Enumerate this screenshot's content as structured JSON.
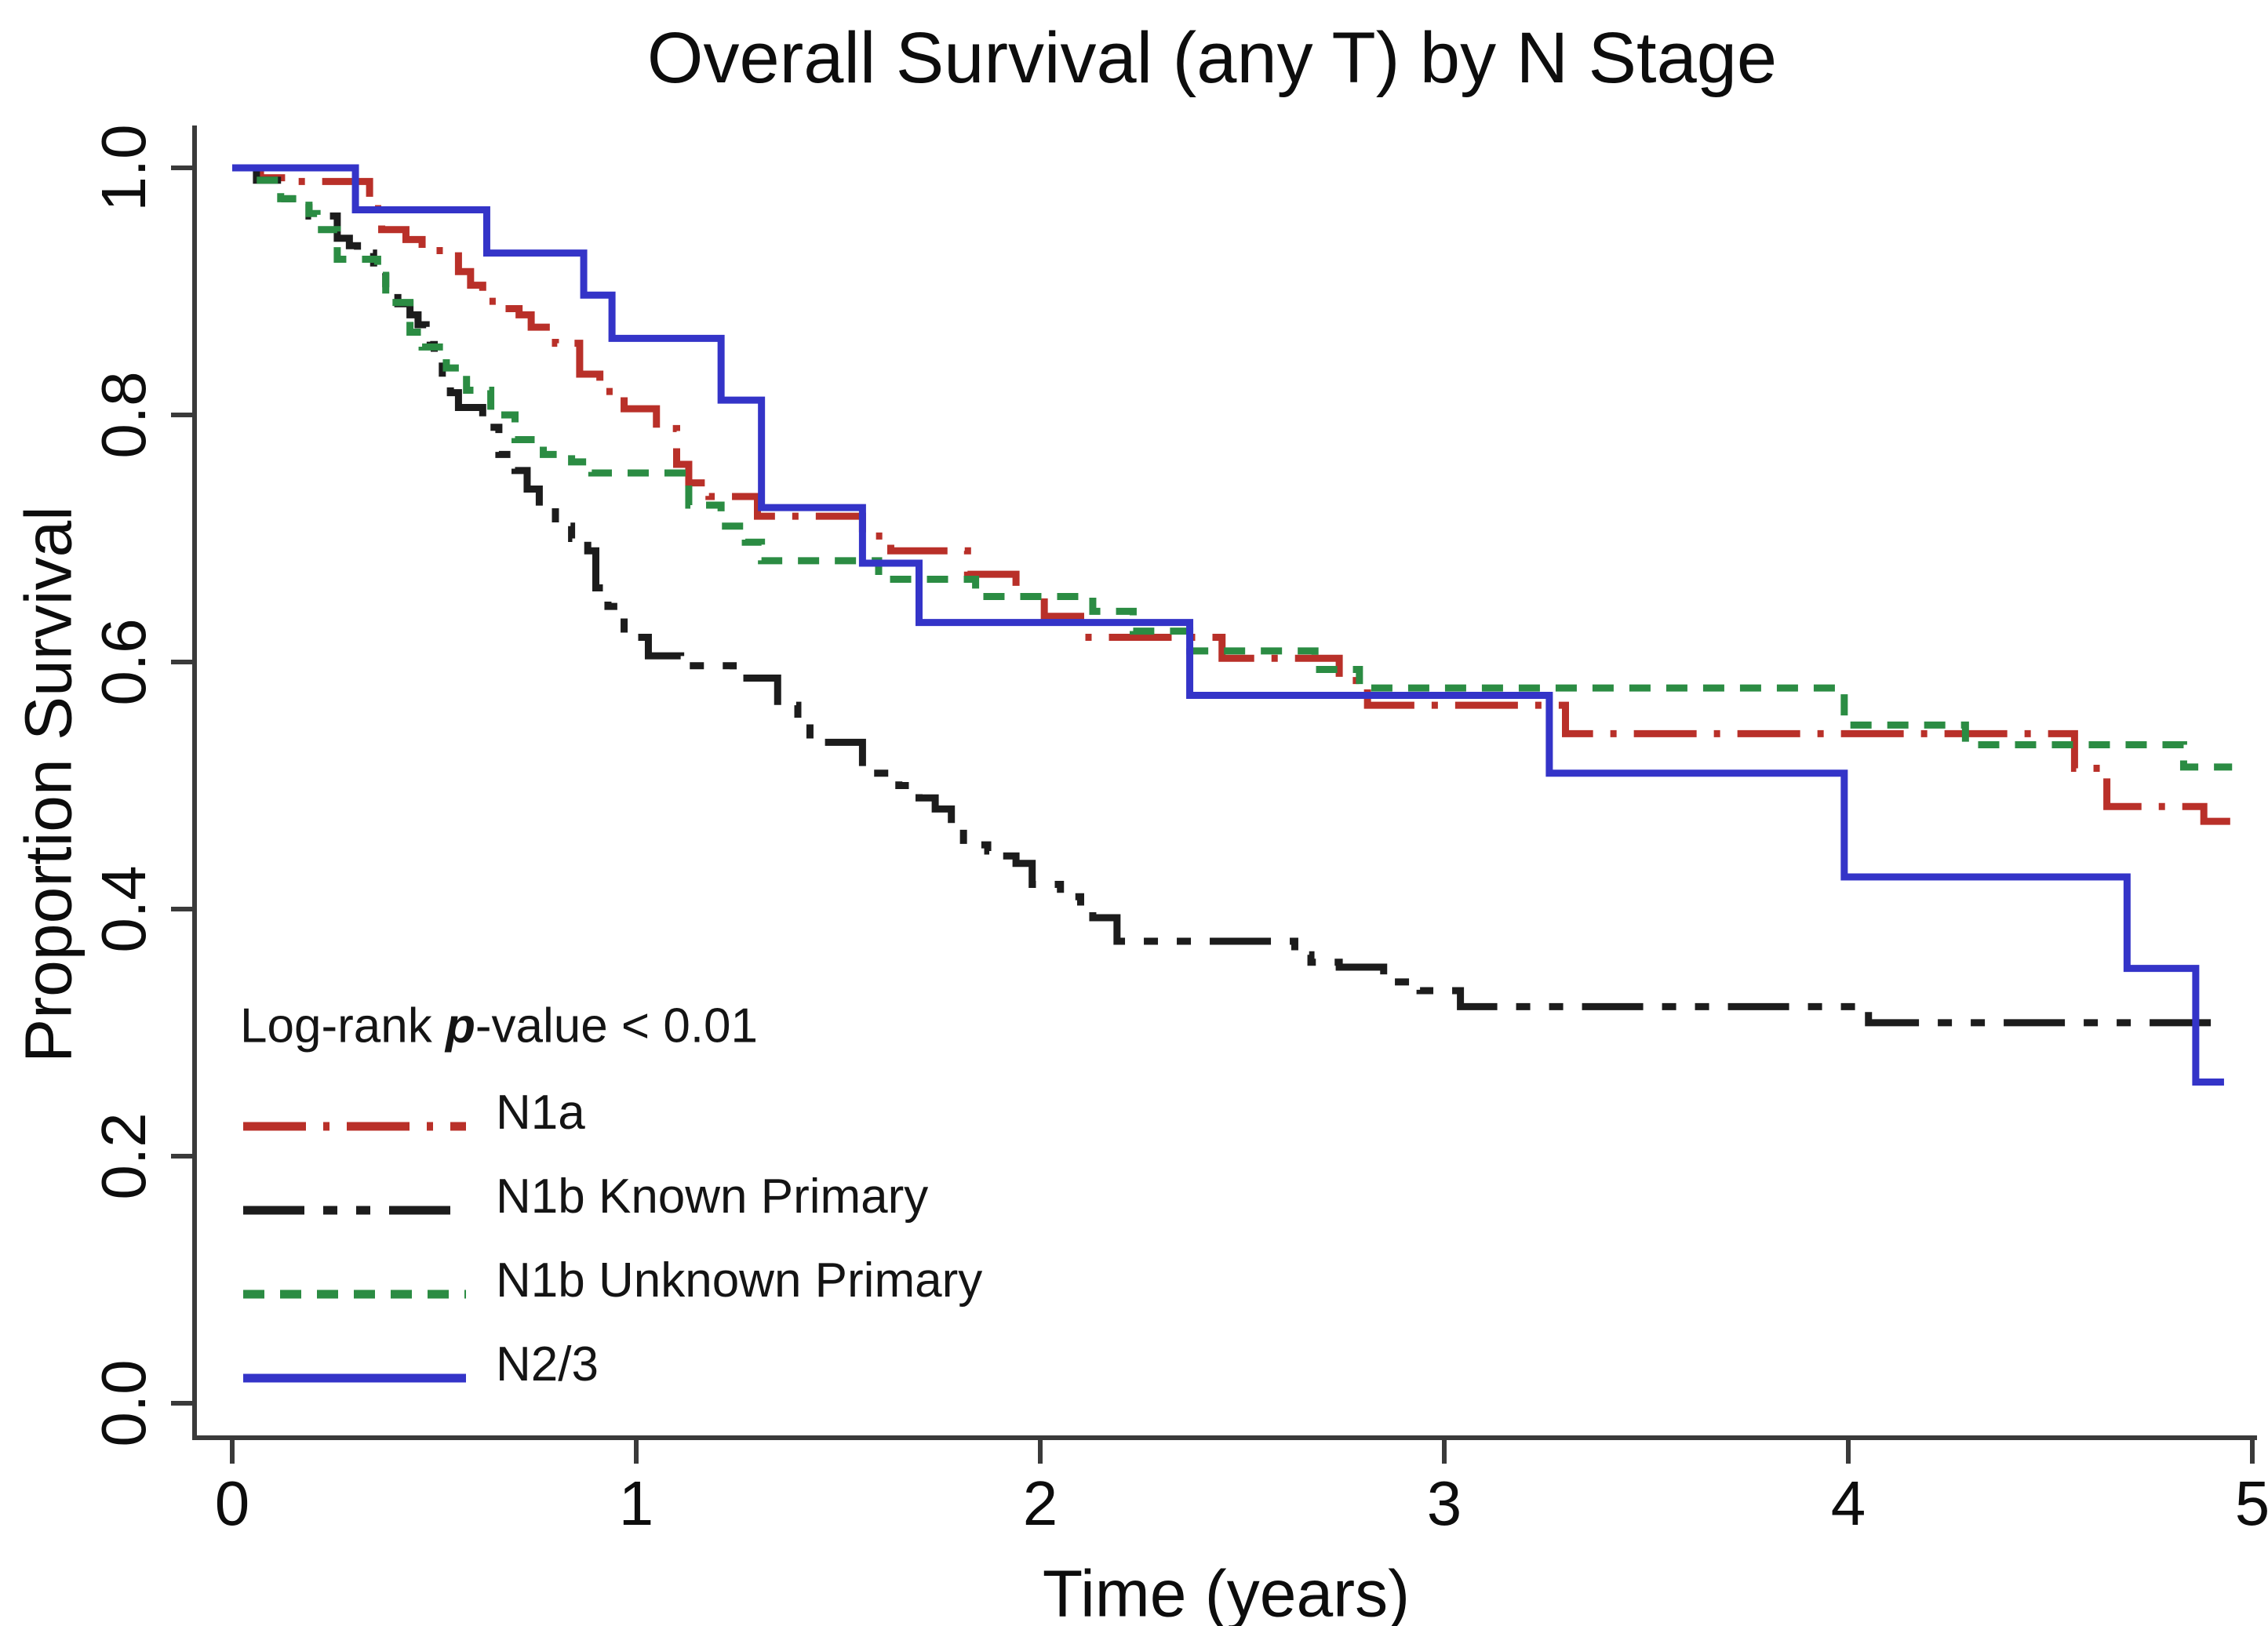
{
  "chart_data": {
    "type": "line",
    "subtype": "kaplan-meier-step",
    "title": "Overall Survival (any T) by N Stage",
    "xlabel": "Time (years)",
    "ylabel": "Proportion Survival",
    "xlim": [
      0,
      5
    ],
    "ylim": [
      0.0,
      1.0
    ],
    "grid": false,
    "legend_position": "inside-bottom-left",
    "x_ticks": [
      "0",
      "1",
      "2",
      "3",
      "4",
      "5"
    ],
    "x_tick_values": [
      0,
      1,
      2,
      3,
      4,
      5
    ],
    "y_ticks": [
      "0.0",
      "0.2",
      "0.4",
      "0.6",
      "0.8",
      "1.0"
    ],
    "y_tick_values": [
      0.0,
      0.2,
      0.4,
      0.6,
      0.8,
      1.0
    ],
    "annotation": {
      "prefix": "Log-rank ",
      "emph": "p",
      "suffix": "-value < 0.01"
    },
    "axis_color": "#3a3a3a",
    "series": [
      {
        "name": "N1a",
        "color": "#b93029",
        "dash": [
          80,
          22,
          8,
          22
        ],
        "end": 4.97,
        "points": [
          [
            0,
            1.0
          ],
          [
            0.07,
            0.992
          ],
          [
            0.15,
            0.989
          ],
          [
            0.34,
            0.967
          ],
          [
            0.37,
            0.95
          ],
          [
            0.43,
            0.942
          ],
          [
            0.47,
            0.933
          ],
          [
            0.56,
            0.916
          ],
          [
            0.59,
            0.905
          ],
          [
            0.62,
            0.892
          ],
          [
            0.66,
            0.886
          ],
          [
            0.71,
            0.881
          ],
          [
            0.74,
            0.871
          ],
          [
            0.8,
            0.858
          ],
          [
            0.86,
            0.833
          ],
          [
            0.91,
            0.819
          ],
          [
            0.97,
            0.805
          ],
          [
            1.05,
            0.789
          ],
          [
            1.1,
            0.76
          ],
          [
            1.13,
            0.745
          ],
          [
            1.18,
            0.734
          ],
          [
            1.3,
            0.718
          ],
          [
            1.56,
            0.702
          ],
          [
            1.63,
            0.69
          ],
          [
            1.82,
            0.671
          ],
          [
            1.94,
            0.653
          ],
          [
            2.01,
            0.637
          ],
          [
            2.1,
            0.62
          ],
          [
            2.45,
            0.603
          ],
          [
            2.74,
            0.585
          ],
          [
            2.81,
            0.565
          ],
          [
            3.3,
            0.542
          ],
          [
            4.56,
            0.514
          ],
          [
            4.64,
            0.483
          ],
          [
            4.88,
            0.471
          ]
        ]
      },
      {
        "name": "N1b Known Primary",
        "color": "#1c1c1c",
        "dash": [
          78,
          24,
          18,
          24,
          18,
          24
        ],
        "end": 4.9,
        "points": [
          [
            0,
            1.0
          ],
          [
            0.06,
            0.99
          ],
          [
            0.13,
            0.975
          ],
          [
            0.19,
            0.961
          ],
          [
            0.26,
            0.943
          ],
          [
            0.29,
            0.937
          ],
          [
            0.31,
            0.931
          ],
          [
            0.35,
            0.916
          ],
          [
            0.38,
            0.9
          ],
          [
            0.41,
            0.89
          ],
          [
            0.44,
            0.881
          ],
          [
            0.46,
            0.873
          ],
          [
            0.48,
            0.865
          ],
          [
            0.49,
            0.857
          ],
          [
            0.5,
            0.849
          ],
          [
            0.52,
            0.83
          ],
          [
            0.54,
            0.818
          ],
          [
            0.56,
            0.806
          ],
          [
            0.62,
            0.79
          ],
          [
            0.66,
            0.768
          ],
          [
            0.7,
            0.755
          ],
          [
            0.73,
            0.74
          ],
          [
            0.76,
            0.725
          ],
          [
            0.8,
            0.71
          ],
          [
            0.84,
            0.7
          ],
          [
            0.88,
            0.69
          ],
          [
            0.9,
            0.66
          ],
          [
            0.93,
            0.645
          ],
          [
            0.97,
            0.62
          ],
          [
            1.03,
            0.605
          ],
          [
            1.11,
            0.597
          ],
          [
            1.24,
            0.587
          ],
          [
            1.35,
            0.565
          ],
          [
            1.4,
            0.55
          ],
          [
            1.43,
            0.535
          ],
          [
            1.56,
            0.51
          ],
          [
            1.65,
            0.5
          ],
          [
            1.7,
            0.49
          ],
          [
            1.74,
            0.481
          ],
          [
            1.78,
            0.465
          ],
          [
            1.81,
            0.452
          ],
          [
            1.87,
            0.447
          ],
          [
            1.9,
            0.443
          ],
          [
            1.94,
            0.437
          ],
          [
            1.98,
            0.42
          ],
          [
            2.05,
            0.41
          ],
          [
            2.1,
            0.4
          ],
          [
            2.13,
            0.393
          ],
          [
            2.19,
            0.374
          ],
          [
            2.63,
            0.363
          ],
          [
            2.67,
            0.357
          ],
          [
            2.74,
            0.353
          ],
          [
            2.85,
            0.341
          ],
          [
            2.94,
            0.334
          ],
          [
            3.04,
            0.321
          ],
          [
            4.05,
            0.308
          ]
        ]
      },
      {
        "name": "N1b Unknown Primary",
        "color": "#2b8c43",
        "dash": [
          27,
          20
        ],
        "end": 4.95,
        "points": [
          [
            0,
            1.0
          ],
          [
            0.05,
            0.99
          ],
          [
            0.12,
            0.975
          ],
          [
            0.19,
            0.963
          ],
          [
            0.21,
            0.95
          ],
          [
            0.26,
            0.926
          ],
          [
            0.36,
            0.913
          ],
          [
            0.38,
            0.891
          ],
          [
            0.44,
            0.867
          ],
          [
            0.47,
            0.855
          ],
          [
            0.53,
            0.838
          ],
          [
            0.58,
            0.82
          ],
          [
            0.64,
            0.8
          ],
          [
            0.7,
            0.78
          ],
          [
            0.77,
            0.768
          ],
          [
            0.84,
            0.762
          ],
          [
            0.89,
            0.753
          ],
          [
            1.13,
            0.727
          ],
          [
            1.21,
            0.71
          ],
          [
            1.27,
            0.697
          ],
          [
            1.31,
            0.682
          ],
          [
            1.6,
            0.667
          ],
          [
            1.84,
            0.653
          ],
          [
            2.13,
            0.641
          ],
          [
            2.23,
            0.625
          ],
          [
            2.37,
            0.609
          ],
          [
            2.68,
            0.594
          ],
          [
            2.79,
            0.579
          ],
          [
            3.99,
            0.549
          ],
          [
            4.29,
            0.533
          ],
          [
            4.83,
            0.515
          ]
        ]
      },
      {
        "name": "N2/3",
        "color": "#3434c8",
        "dash": [],
        "end": 4.93,
        "points": [
          [
            0,
            1.0
          ],
          [
            0.305,
            0.966
          ],
          [
            0.63,
            0.931
          ],
          [
            0.87,
            0.897
          ],
          [
            0.94,
            0.862
          ],
          [
            1.21,
            0.812
          ],
          [
            1.31,
            0.725
          ],
          [
            1.56,
            0.68
          ],
          [
            1.7,
            0.632
          ],
          [
            2.37,
            0.573
          ],
          [
            3.26,
            0.51
          ],
          [
            3.99,
            0.426
          ],
          [
            4.69,
            0.352
          ],
          [
            4.86,
            0.26
          ]
        ]
      }
    ]
  },
  "legend": {
    "items": [
      {
        "label": "N1a"
      },
      {
        "label": "N1b Known Primary"
      },
      {
        "label": "N1b Unknown Primary"
      },
      {
        "label": "N2/3"
      }
    ]
  }
}
